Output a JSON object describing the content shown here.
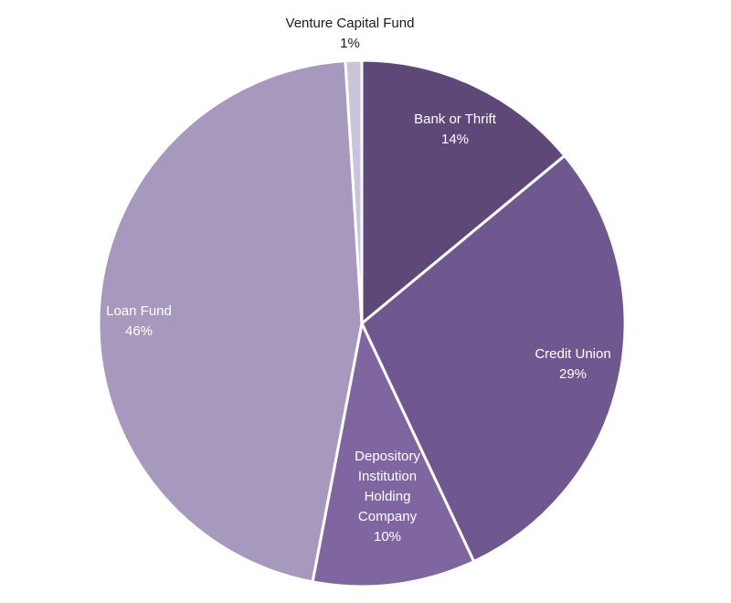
{
  "chart_data": {
    "type": "pie",
    "title": "",
    "slices": [
      {
        "label": "Bank or Thrift",
        "value_label": "14%",
        "value": 14,
        "color": "#5d4878",
        "text_color": "#ffffff",
        "label_lines": [
          "Bank or Thrift"
        ]
      },
      {
        "label": "Credit Union",
        "value_label": "29%",
        "value": 29,
        "color": "#6f588f",
        "text_color": "#ffffff",
        "label_lines": [
          "Credit Union"
        ]
      },
      {
        "label": "Depository Institution Holding Company",
        "value_label": "10%",
        "value": 10,
        "color": "#7f66a1",
        "text_color": "#ffffff",
        "label_lines": [
          "Depository",
          "Institution",
          "Holding",
          "Company"
        ]
      },
      {
        "label": "Loan Fund",
        "value_label": "46%",
        "value": 46,
        "color": "#a699bd",
        "text_color": "#ffffff",
        "label_lines": [
          "Loan Fund"
        ]
      },
      {
        "label": "Venture Capital Fund",
        "value_label": "1%",
        "value": 1,
        "color": "#cbc3da",
        "text_color": "#1a1a1a",
        "label_lines": [
          "Venture Capital Fund"
        ]
      }
    ],
    "legend": "none"
  }
}
